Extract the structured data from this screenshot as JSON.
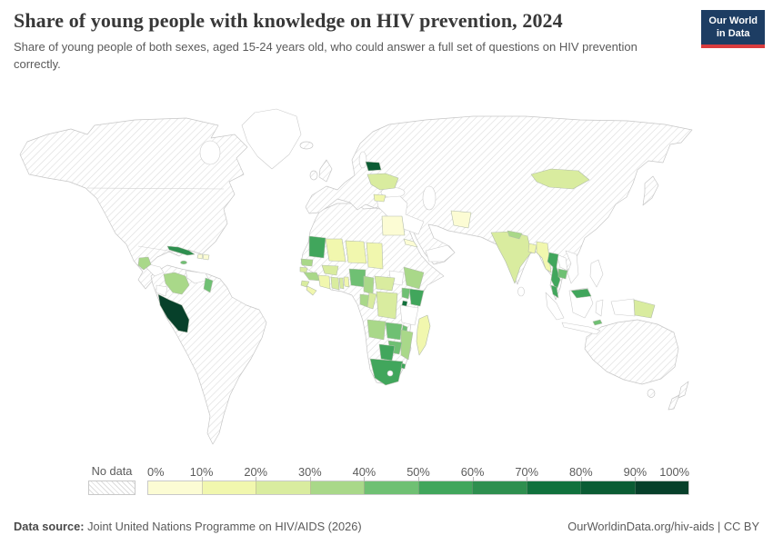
{
  "header": {
    "title": "Share of young people with knowledge on HIV prevention, 2024",
    "subtitle": "Share of young people of both sexes, aged 15-24 years old, who could answer a full set of questions on HIV prevention correctly.",
    "logo_line1": "Our World",
    "logo_line2": "in Data",
    "logo_bg": "#1d3d63",
    "logo_accent": "#d93c3e"
  },
  "legend": {
    "no_data_label": "No data",
    "tick_labels": [
      "0%",
      "10%",
      "20%",
      "30%",
      "40%",
      "50%",
      "60%",
      "70%",
      "80%",
      "90%",
      "100%"
    ],
    "band_colors": [
      "#fcfcd4",
      "#f1f7ae",
      "#d9ec9f",
      "#a9d889",
      "#6fc073",
      "#41a65c",
      "#2e8f4f",
      "#11713d",
      "#0b5c34",
      "#07402a"
    ]
  },
  "footer": {
    "source_label": "Data source:",
    "source_text": " Joint United Nations Programme on HIV/AIDS (2026)",
    "right_text": "OurWorldinData.org/hiv-aids | CC BY"
  },
  "chart_data": {
    "type": "choropleth",
    "title": "Share of young people with knowledge on HIV prevention, 2024",
    "unit": "%",
    "value_range": [
      0,
      100
    ],
    "band_width": 10,
    "no_data_style": "gray diagonal hatching",
    "countries": [
      {
        "name": "Peru",
        "range": "90-100%"
      },
      {
        "name": "Belarus",
        "range": "80-90%"
      },
      {
        "name": "Rwanda",
        "range": "70-80%"
      },
      {
        "name": "Cuba",
        "range": "60-70%"
      },
      {
        "name": "Mauritania",
        "range": "50-60%"
      },
      {
        "name": "Kenya",
        "range": "50-60%"
      },
      {
        "name": "Botswana",
        "range": "50-60%"
      },
      {
        "name": "South Africa",
        "range": "50-60%"
      },
      {
        "name": "Eswatini",
        "range": "50-60%"
      },
      {
        "name": "Thailand",
        "range": "50-60%"
      },
      {
        "name": "Malaysia",
        "range": "50-60%"
      },
      {
        "name": "Nigeria",
        "range": "40-50%"
      },
      {
        "name": "Uganda",
        "range": "40-50%"
      },
      {
        "name": "Zambia",
        "range": "40-50%"
      },
      {
        "name": "Malawi",
        "range": "40-50%"
      },
      {
        "name": "Zimbabwe",
        "range": "40-50%"
      },
      {
        "name": "Guyana",
        "range": "40-50%"
      },
      {
        "name": "Jamaica",
        "range": "40-50%"
      },
      {
        "name": "Cambodia",
        "range": "40-50%"
      },
      {
        "name": "Timor-Leste",
        "range": "40-50%"
      },
      {
        "name": "Senegal",
        "range": "30-40%"
      },
      {
        "name": "Guinea",
        "range": "30-40%"
      },
      {
        "name": "Cameroon",
        "range": "30-40%"
      },
      {
        "name": "Gabon",
        "range": "30-40%"
      },
      {
        "name": "Ethiopia",
        "range": "30-40%"
      },
      {
        "name": "Angola",
        "range": "30-40%"
      },
      {
        "name": "Mozambique",
        "range": "30-40%"
      },
      {
        "name": "Colombia",
        "range": "30-40%"
      },
      {
        "name": "Guatemala",
        "range": "30-40%"
      },
      {
        "name": "Nepal",
        "range": "30-40%"
      },
      {
        "name": "Ukraine",
        "range": "20-30%"
      },
      {
        "name": "Mongolia",
        "range": "20-30%"
      },
      {
        "name": "India",
        "range": "20-30%"
      },
      {
        "name": "Ghana",
        "range": "20-30%"
      },
      {
        "name": "Togo",
        "range": "20-30%"
      },
      {
        "name": "Burkina Faso",
        "range": "20-30%"
      },
      {
        "name": "Sierra Leone",
        "range": "20-30%"
      },
      {
        "name": "Guinea-Bissau",
        "range": "20-30%"
      },
      {
        "name": "Central African Republic",
        "range": "20-30%"
      },
      {
        "name": "Congo",
        "range": "20-30%"
      },
      {
        "name": "Democratic Republic of Congo",
        "range": "20-30%"
      },
      {
        "name": "Papua New Guinea",
        "range": "20-30%"
      },
      {
        "name": "Bulgaria",
        "range": "10-20%"
      },
      {
        "name": "Mali",
        "range": "10-20%"
      },
      {
        "name": "Niger",
        "range": "10-20%"
      },
      {
        "name": "Chad",
        "range": "10-20%"
      },
      {
        "name": "Liberia",
        "range": "10-20%"
      },
      {
        "name": "Cote d'Ivoire",
        "range": "10-20%"
      },
      {
        "name": "Benin",
        "range": "10-20%"
      },
      {
        "name": "Madagascar",
        "range": "10-20%"
      },
      {
        "name": "Myanmar",
        "range": "10-20%"
      },
      {
        "name": "Bangladesh",
        "range": "10-20%"
      },
      {
        "name": "Egypt",
        "range": "0-10%"
      },
      {
        "name": "Afghanistan",
        "range": "0-10%"
      },
      {
        "name": "Haiti",
        "range": "0-10%"
      },
      {
        "name": "Dominican Republic",
        "range": "0-10%"
      },
      {
        "name": "Eritrea",
        "range": "0-10%"
      }
    ]
  }
}
